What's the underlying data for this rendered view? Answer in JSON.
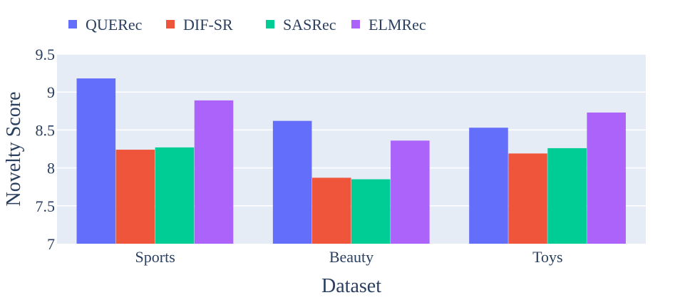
{
  "chart_data": {
    "type": "bar",
    "categories": [
      "Sports",
      "Beauty",
      "Toys"
    ],
    "series": [
      {
        "name": "QUERec",
        "color": "#636efa",
        "values": [
          9.18,
          8.62,
          8.53
        ]
      },
      {
        "name": "DIF-SR",
        "color": "#ef553b",
        "values": [
          8.24,
          7.87,
          8.19
        ]
      },
      {
        "name": "SASRec",
        "color": "#00cc96",
        "values": [
          8.27,
          7.85,
          8.26
        ]
      },
      {
        "name": "ELMRec",
        "color": "#ab63fa",
        "values": [
          8.89,
          8.36,
          8.73
        ]
      }
    ],
    "xlabel": "Dataset",
    "ylabel": "Novelty Score",
    "ylim": [
      7,
      9.5
    ],
    "yticks": [
      7,
      7.5,
      8,
      8.5,
      9,
      9.5
    ],
    "ytick_labels": [
      "7",
      "7.5",
      "8",
      "8.5",
      "9",
      "9.5"
    ],
    "grid": true,
    "legend_position": "top-left",
    "plot_background": "#e5ecf6"
  }
}
